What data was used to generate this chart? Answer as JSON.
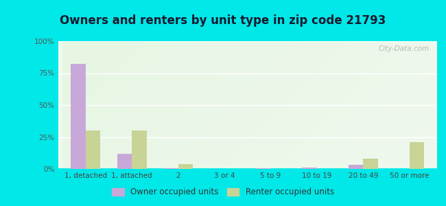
{
  "title": "Owners and renters by unit type in zip code 21793",
  "categories": [
    "1, detached",
    "1, attached",
    "2",
    "3 or 4",
    "5 to 9",
    "10 to 19",
    "20 to 49",
    "50 or more"
  ],
  "owner_values": [
    82,
    12,
    0.8,
    0,
    0.5,
    1,
    3,
    0
  ],
  "renter_values": [
    30,
    30,
    4,
    0,
    0,
    0,
    8,
    21
  ],
  "owner_color": "#c8a8d8",
  "renter_color": "#c8d496",
  "background_color": "#00e8e8",
  "ylim": [
    0,
    100
  ],
  "yticks": [
    0,
    25,
    50,
    75,
    100
  ],
  "ytick_labels": [
    "0%",
    "25%",
    "50%",
    "75%",
    "100%"
  ],
  "legend_owner": "Owner occupied units",
  "legend_renter": "Renter occupied units",
  "watermark": "City-Data.com",
  "title_fontsize": 12,
  "tick_fontsize": 7.5,
  "legend_fontsize": 8.5
}
